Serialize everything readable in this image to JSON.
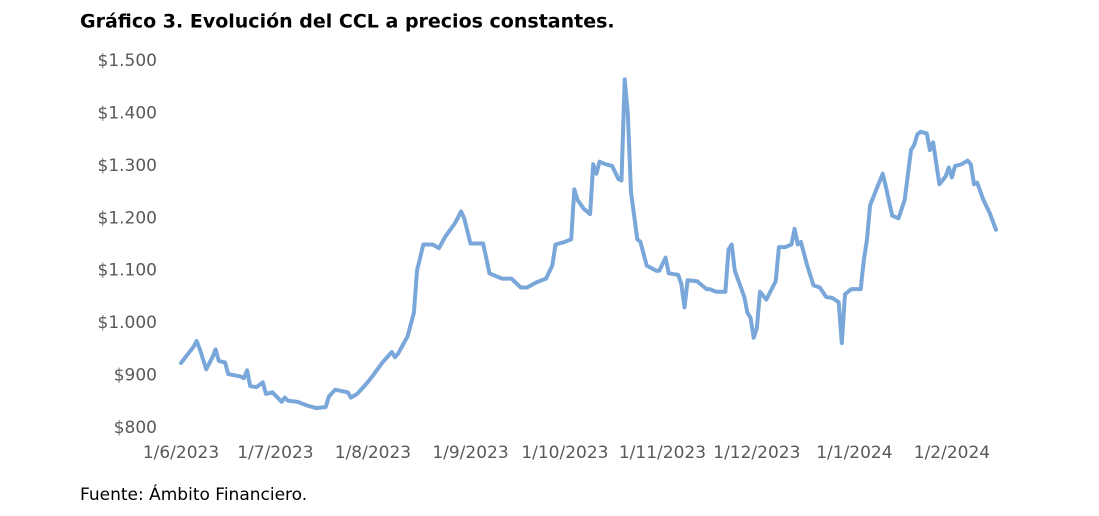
{
  "chart_data": {
    "type": "line",
    "title": "Gráfico 3. Evolución del CCL a precios constantes.",
    "source": "Fuente: Ámbito Financiero.",
    "x": [
      "2023-06-01",
      "2023-06-05",
      "2023-06-06",
      "2023-06-07",
      "2023-06-09",
      "2023-06-11",
      "2023-06-12",
      "2023-06-13",
      "2023-06-15",
      "2023-06-16",
      "2023-06-20",
      "2023-06-21",
      "2023-06-22",
      "2023-06-23",
      "2023-06-25",
      "2023-06-27",
      "2023-06-28",
      "2023-06-30",
      "2023-07-03",
      "2023-07-04",
      "2023-07-05",
      "2023-07-08",
      "2023-07-11",
      "2023-07-14",
      "2023-07-17",
      "2023-07-18",
      "2023-07-20",
      "2023-07-24",
      "2023-07-25",
      "2023-07-27",
      "2023-07-30",
      "2023-08-01",
      "2023-08-04",
      "2023-08-07",
      "2023-08-08",
      "2023-08-09",
      "2023-08-12",
      "2023-08-14",
      "2023-08-15",
      "2023-08-17",
      "2023-08-20",
      "2023-08-22",
      "2023-08-24",
      "2023-08-27",
      "2023-08-29",
      "2023-08-30",
      "2023-09-01",
      "2023-09-05",
      "2023-09-06",
      "2023-09-07",
      "2023-09-11",
      "2023-09-14",
      "2023-09-17",
      "2023-09-19",
      "2023-09-22",
      "2023-09-25",
      "2023-09-27",
      "2023-09-28",
      "2023-10-01",
      "2023-10-03",
      "2023-10-04",
      "2023-10-05",
      "2023-10-07",
      "2023-10-09",
      "2023-10-10",
      "2023-10-11",
      "2023-10-12",
      "2023-10-14",
      "2023-10-16",
      "2023-10-18",
      "2023-10-19",
      "2023-10-20",
      "2023-10-21",
      "2023-10-22",
      "2023-10-24",
      "2023-10-25",
      "2023-10-27",
      "2023-10-30",
      "2023-10-31",
      "2023-11-02",
      "2023-11-03",
      "2023-11-06",
      "2023-11-07",
      "2023-11-08",
      "2023-11-09",
      "2023-11-12",
      "2023-11-15",
      "2023-11-16",
      "2023-11-18",
      "2023-11-21",
      "2023-11-22",
      "2023-11-23",
      "2023-11-24",
      "2023-11-27",
      "2023-11-28",
      "2023-11-29",
      "2023-11-30",
      "2023-12-01",
      "2023-12-02",
      "2023-12-04",
      "2023-12-07",
      "2023-12-08",
      "2023-12-10",
      "2023-12-12",
      "2023-12-13",
      "2023-12-14",
      "2023-12-15",
      "2023-12-17",
      "2023-12-19",
      "2023-12-21",
      "2023-12-23",
      "2023-12-25",
      "2023-12-27",
      "2023-12-28",
      "2023-12-29",
      "2023-12-31",
      "2024-01-03",
      "2024-01-04",
      "2024-01-05",
      "2024-01-06",
      "2024-01-08",
      "2024-01-10",
      "2024-01-11",
      "2024-01-13",
      "2024-01-15",
      "2024-01-17",
      "2024-01-19",
      "2024-01-20",
      "2024-01-21",
      "2024-01-22",
      "2024-01-24",
      "2024-01-25",
      "2024-01-26",
      "2024-01-28",
      "2024-01-30",
      "2024-01-31",
      "2024-02-01",
      "2024-02-02",
      "2024-02-04",
      "2024-02-06",
      "2024-02-07",
      "2024-02-08",
      "2024-02-09",
      "2024-02-11",
      "2024-02-13",
      "2024-02-15"
    ],
    "series": [
      {
        "color": "#7aa7d9",
        "values": [
          924,
          955,
          966,
          950,
          912,
          935,
          950,
          928,
          925,
          903,
          898,
          895,
          910,
          880,
          878,
          887,
          865,
          868,
          850,
          858,
          852,
          850,
          843,
          838,
          840,
          860,
          873,
          868,
          858,
          865,
          885,
          900,
          925,
          945,
          935,
          942,
          975,
          1020,
          1100,
          1150,
          1150,
          1143,
          1165,
          1190,
          1213,
          1200,
          1152,
          1152,
          1125,
          1095,
          1085,
          1085,
          1068,
          1068,
          1078,
          1085,
          1110,
          1150,
          1155,
          1160,
          1255,
          1235,
          1218,
          1208,
          1303,
          1285,
          1308,
          1303,
          1300,
          1275,
          1272,
          1465,
          1400,
          1250,
          1160,
          1155,
          1110,
          1100,
          1100,
          1125,
          1095,
          1092,
          1075,
          1030,
          1082,
          1080,
          1065,
          1065,
          1060,
          1060,
          1140,
          1150,
          1100,
          1050,
          1020,
          1010,
          972,
          990,
          1060,
          1045,
          1080,
          1145,
          1145,
          1150,
          1180,
          1150,
          1155,
          1110,
          1072,
          1068,
          1050,
          1048,
          1040,
          962,
          1055,
          1065,
          1065,
          1120,
          1160,
          1225,
          1255,
          1285,
          1260,
          1205,
          1200,
          1235,
          1330,
          1340,
          1360,
          1365,
          1362,
          1330,
          1345,
          1265,
          1280,
          1297,
          1278,
          1300,
          1303,
          1310,
          1303,
          1265,
          1268,
          1235,
          1210,
          1178
        ]
      }
    ],
    "xlim": [
      "2023-06-01",
      "2024-02-15"
    ],
    "xticks": [
      {
        "value": "2023-06-01",
        "label": "1/6/2023"
      },
      {
        "value": "2023-07-01",
        "label": "1/7/2023"
      },
      {
        "value": "2023-08-01",
        "label": "1/8/2023"
      },
      {
        "value": "2023-09-01",
        "label": "1/9/2023"
      },
      {
        "value": "2023-10-01",
        "label": "1/10/2023"
      },
      {
        "value": "2023-11-01",
        "label": "1/11/2023"
      },
      {
        "value": "2023-12-01",
        "label": "1/12/2023"
      },
      {
        "value": "2024-01-01",
        "label": "1/1/2024"
      },
      {
        "value": "2024-02-01",
        "label": "1/2/2024"
      }
    ],
    "ylim": [
      800,
      1500
    ],
    "yticks": [
      {
        "value": 800,
        "label": "$800"
      },
      {
        "value": 900,
        "label": "$900"
      },
      {
        "value": 1000,
        "label": "$1.000"
      },
      {
        "value": 1100,
        "label": "$1.100"
      },
      {
        "value": 1200,
        "label": "$1.200"
      },
      {
        "value": 1300,
        "label": "$1.300"
      },
      {
        "value": 1400,
        "label": "$1.400"
      },
      {
        "value": 1500,
        "label": "$1.500"
      }
    ],
    "grid": false
  }
}
